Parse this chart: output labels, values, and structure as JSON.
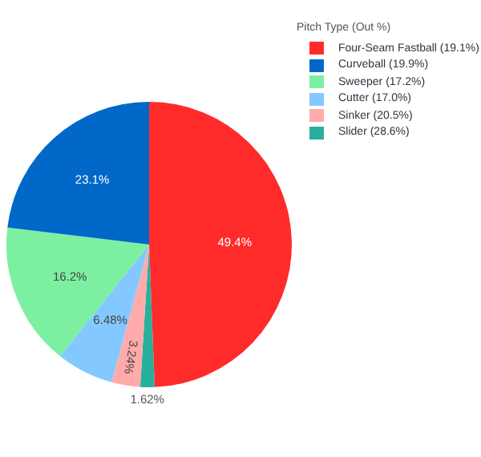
{
  "chart_data": {
    "type": "pie",
    "legend_title": "Pitch Type (Out %)",
    "legend": "top right",
    "value_labels": [
      "49.4%",
      "23.1%",
      "16.2%",
      "6.48%",
      "3.24%",
      "1.62%"
    ],
    "categories": [
      "Four-Seam Fastball (19.1%)",
      "Curveball (19.9%)",
      "Sweeper (17.2%)",
      "Cutter (17.0%)",
      "Sinker (20.5%)",
      "Slider (28.6%)"
    ],
    "values": [
      49.4,
      23.1,
      16.2,
      6.48,
      3.24,
      1.62
    ],
    "colors": [
      "#ff2b2b",
      "#0068c9",
      "#7defa1",
      "#83c9ff",
      "#ffabab",
      "#29b09d"
    ]
  }
}
